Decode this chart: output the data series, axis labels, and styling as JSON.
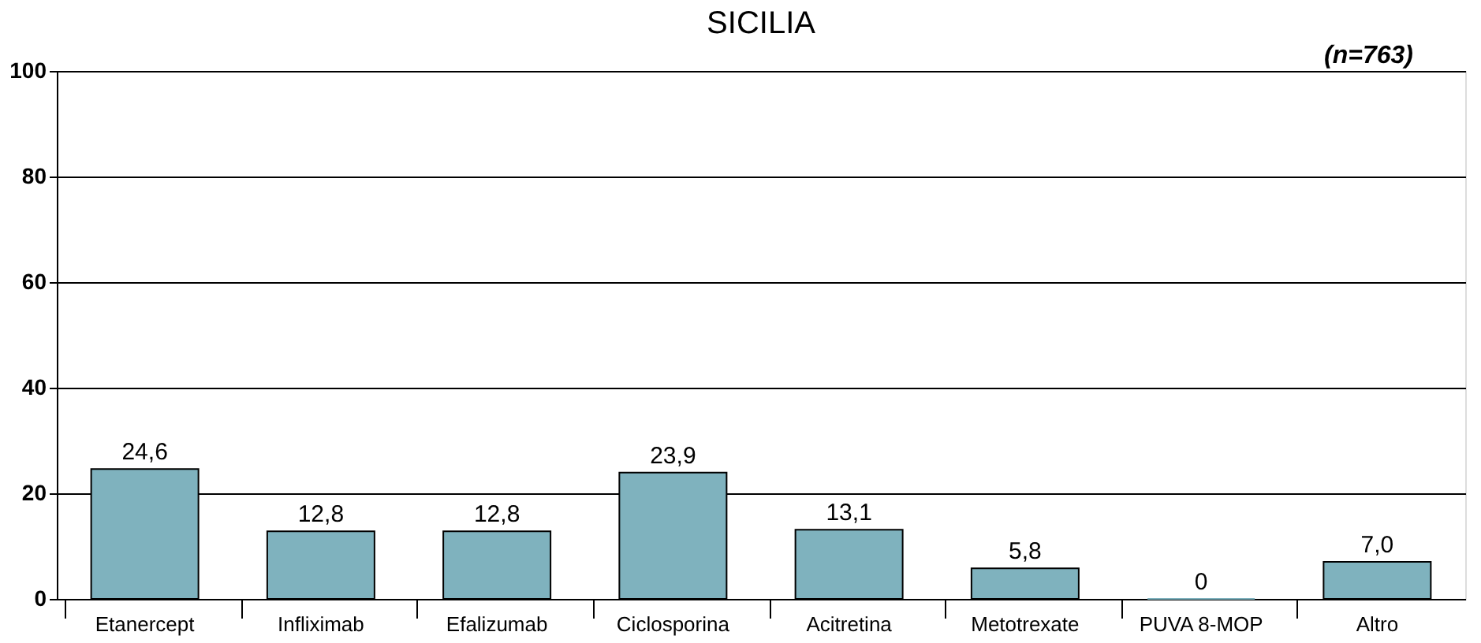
{
  "chart_data": {
    "type": "bar",
    "title": "SICILIA",
    "annotations": [
      "(n=763)"
    ],
    "categories": [
      "Etanercept",
      "Infliximab",
      "Efalizumab",
      "Ciclosporina",
      "Acitretina",
      "Metotrexate",
      "PUVA 8-MOP",
      "Altro"
    ],
    "values": [
      24.6,
      12.8,
      12.8,
      23.9,
      13.1,
      5.8,
      0,
      7.0
    ],
    "value_labels": [
      "24,6",
      "12,8",
      "12,8",
      "23,9",
      "13,1",
      "5,8",
      "0",
      "7,0"
    ],
    "color": "#7fb2be",
    "ylim": [
      0,
      100
    ],
    "yticks": [
      0,
      20,
      40,
      60,
      80,
      100
    ],
    "grid": "y"
  }
}
